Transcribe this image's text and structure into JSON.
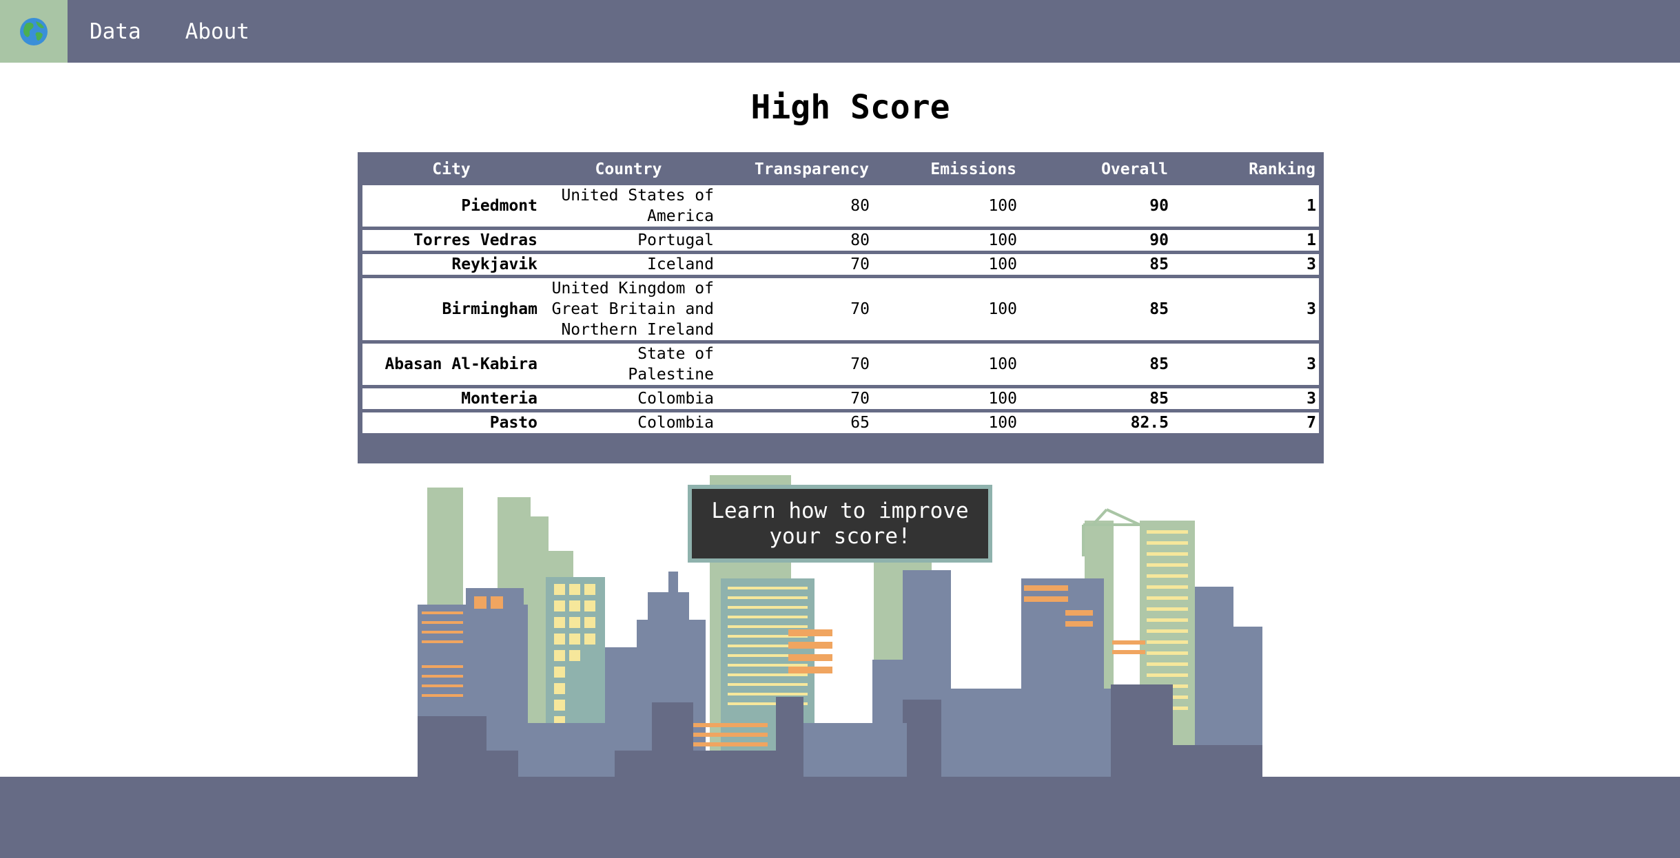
{
  "nav": {
    "logo_icon": "globe-icon",
    "links": [
      "Data",
      "About"
    ]
  },
  "page": {
    "title": "High Score"
  },
  "table": {
    "headers": {
      "city": "City",
      "country": "Country",
      "transparency": "Transparency",
      "emissions": "Emissions",
      "overall": "Overall",
      "ranking": "Ranking"
    },
    "rows": [
      {
        "city": "Piedmont",
        "country": "United States of America",
        "transparency": "80",
        "emissions": "100",
        "overall": "90",
        "ranking": "1"
      },
      {
        "city": "Torres Vedras",
        "country": "Portugal",
        "transparency": "80",
        "emissions": "100",
        "overall": "90",
        "ranking": "1"
      },
      {
        "city": "Reykjavik",
        "country": "Iceland",
        "transparency": "70",
        "emissions": "100",
        "overall": "85",
        "ranking": "3"
      },
      {
        "city": "Birmingham",
        "country": "United Kingdom of Great Britain and Northern Ireland",
        "transparency": "70",
        "emissions": "100",
        "overall": "85",
        "ranking": "3"
      },
      {
        "city": "Abasan Al-Kabira",
        "country": "State of Palestine",
        "transparency": "70",
        "emissions": "100",
        "overall": "85",
        "ranking": "3"
      },
      {
        "city": "Monteria",
        "country": "Colombia",
        "transparency": "70",
        "emissions": "100",
        "overall": "85",
        "ranking": "3"
      },
      {
        "city": "Pasto",
        "country": "Colombia",
        "transparency": "65",
        "emissions": "100",
        "overall": "82.5",
        "ranking": "7"
      }
    ]
  },
  "cta": {
    "label": "Learn how to improve your score!"
  },
  "colors": {
    "nav_bg": "#666b85",
    "logo_bg": "#a9c5a5",
    "cta_bg": "#333333",
    "building_slate": "#7a87a3",
    "building_sage": "#afc7a8",
    "window_yellow": "#f6e79b",
    "window_orange": "#f0a560"
  }
}
